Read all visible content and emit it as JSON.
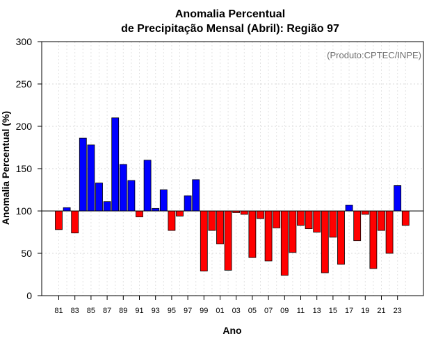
{
  "chart_data": {
    "type": "bar",
    "title_line1": "Anomalia Percentual",
    "title_line2": "de Precipitação Mensal (Abril): Região 97",
    "xlabel": "Ano",
    "ylabel": "Anomalia Percentual (%)",
    "source_note": "(Produto:CPTEC/INPE)",
    "ylim": [
      0,
      300
    ],
    "yticks": [
      0,
      50,
      100,
      150,
      200,
      250,
      300
    ],
    "baseline": 100,
    "grid": true,
    "colors": {
      "above": "#0000ff",
      "below": "#ff0000",
      "edge": "#000000"
    },
    "categories": [
      "81",
      "82",
      "83",
      "84",
      "85",
      "86",
      "87",
      "88",
      "89",
      "90",
      "91",
      "92",
      "93",
      "94",
      "95",
      "96",
      "97",
      "98",
      "99",
      "00",
      "01",
      "02",
      "03",
      "04",
      "05",
      "06",
      "07",
      "08",
      "09",
      "10",
      "11",
      "12",
      "13",
      "14",
      "15",
      "16",
      "17",
      "18",
      "19",
      "20",
      "21",
      "22",
      "23",
      "24"
    ],
    "values": [
      78,
      104,
      74,
      186,
      178,
      133,
      111,
      210,
      155,
      136,
      93,
      160,
      103,
      125,
      77,
      94,
      118,
      137,
      29,
      77,
      61,
      30,
      98,
      96,
      45,
      91,
      41,
      80,
      24,
      51,
      83,
      79,
      75,
      27,
      69,
      37,
      107,
      65,
      96,
      32,
      77,
      50,
      130,
      83
    ],
    "xtick_labels": [
      "81",
      "83",
      "85",
      "87",
      "89",
      "91",
      "93",
      "95",
      "97",
      "99",
      "01",
      "03",
      "05",
      "07",
      "09",
      "11",
      "13",
      "15",
      "17",
      "19",
      "21",
      "23"
    ]
  }
}
